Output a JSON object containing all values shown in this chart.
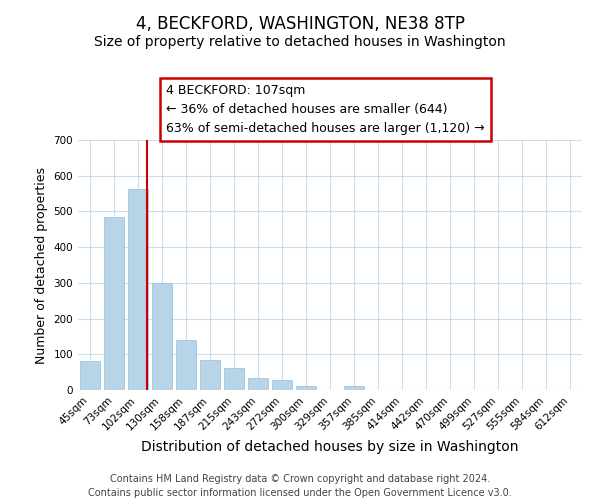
{
  "title": "4, BECKFORD, WASHINGTON, NE38 8TP",
  "subtitle": "Size of property relative to detached houses in Washington",
  "xlabel": "Distribution of detached houses by size in Washington",
  "ylabel": "Number of detached properties",
  "categories": [
    "45sqm",
    "73sqm",
    "102sqm",
    "130sqm",
    "158sqm",
    "187sqm",
    "215sqm",
    "243sqm",
    "272sqm",
    "300sqm",
    "329sqm",
    "357sqm",
    "385sqm",
    "414sqm",
    "442sqm",
    "470sqm",
    "499sqm",
    "527sqm",
    "555sqm",
    "584sqm",
    "612sqm"
  ],
  "values": [
    82,
    484,
    562,
    301,
    139,
    85,
    63,
    35,
    29,
    12,
    0,
    12,
    0,
    0,
    0,
    0,
    0,
    0,
    0,
    0,
    0
  ],
  "bar_color": "#b8d4e8",
  "bar_edge_color": "#a0c4e0",
  "vline_x": 2,
  "vline_color": "#cc0000",
  "annotation_line1": "4 BECKFORD: 107sqm",
  "annotation_line2": "← 36% of detached houses are smaller (644)",
  "annotation_line3": "63% of semi-detached houses are larger (1,120) →",
  "annotation_box_color": "#ffffff",
  "annotation_box_edge": "#cc0000",
  "annotation_fontsize": 9,
  "ylim": [
    0,
    700
  ],
  "yticks": [
    0,
    100,
    200,
    300,
    400,
    500,
    600,
    700
  ],
  "grid_color": "#ccdded",
  "footer1": "Contains HM Land Registry data © Crown copyright and database right 2024.",
  "footer2": "Contains public sector information licensed under the Open Government Licence v3.0.",
  "title_fontsize": 12,
  "subtitle_fontsize": 10,
  "xlabel_fontsize": 10,
  "ylabel_fontsize": 9,
  "tick_fontsize": 7.5,
  "footer_fontsize": 7
}
